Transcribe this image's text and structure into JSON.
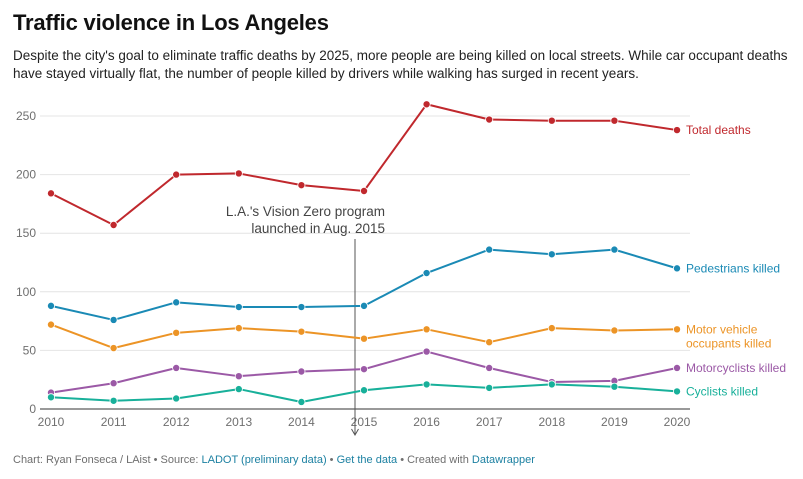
{
  "header": {
    "title": "Traffic violence in Los Angeles",
    "subtitle": "Despite the city's goal to eliminate traffic deaths by 2025, more people are being killed on local streets. While car occupant deaths have stayed virtually flat, the number of people killed by drivers while walking has surged in recent years."
  },
  "footer": {
    "credit": "Chart: Ryan Fonseca / LAist • Source: ",
    "source_link": "LADOT (preliminary data)",
    "sep1": " • ",
    "data_link": "Get the data",
    "created": " • Created with ",
    "tool_link": "Datawrapper"
  },
  "chart_data": {
    "type": "line",
    "title": "Traffic violence in Los Angeles",
    "x": [
      2010,
      2011,
      2012,
      2013,
      2014,
      2015,
      2016,
      2017,
      2018,
      2019,
      2020
    ],
    "ylim": [
      0,
      265
    ],
    "yticks": [
      0,
      50,
      100,
      150,
      200,
      250
    ],
    "grid": true,
    "legend": "direct labels at line ends",
    "series": [
      {
        "name": "Total deaths",
        "label_lines": [
          "Total deaths"
        ],
        "color": "#c0282d",
        "values": [
          184,
          157,
          200,
          201,
          191,
          186,
          260,
          247,
          246,
          246,
          238
        ]
      },
      {
        "name": "Pedestrians killed",
        "label_lines": [
          "Pedestrians killed"
        ],
        "color": "#1a8ab5",
        "values": [
          88,
          76,
          91,
          87,
          87,
          88,
          116,
          136,
          132,
          136,
          120
        ]
      },
      {
        "name": "Motor vehicle occupants killed",
        "label_lines": [
          "Motor vehicle",
          "occupants killed"
        ],
        "color": "#ec9426",
        "values": [
          72,
          52,
          65,
          69,
          66,
          60,
          68,
          57,
          69,
          67,
          68
        ]
      },
      {
        "name": "Motorcyclists killed",
        "label_lines": [
          "Motorcyclists killed"
        ],
        "color": "#9b59a6",
        "values": [
          14,
          22,
          35,
          28,
          32,
          34,
          49,
          35,
          23,
          24,
          35
        ]
      },
      {
        "name": "Cyclists killed",
        "label_lines": [
          "Cyclists killed"
        ],
        "color": "#18b09a",
        "values": [
          10,
          7,
          9,
          17,
          6,
          16,
          21,
          18,
          21,
          19,
          15
        ]
      }
    ],
    "annotations": [
      {
        "x": 2015,
        "lines": [
          "L.A.'s Vision Zero program",
          "launched in Aug. 2015"
        ]
      }
    ]
  }
}
